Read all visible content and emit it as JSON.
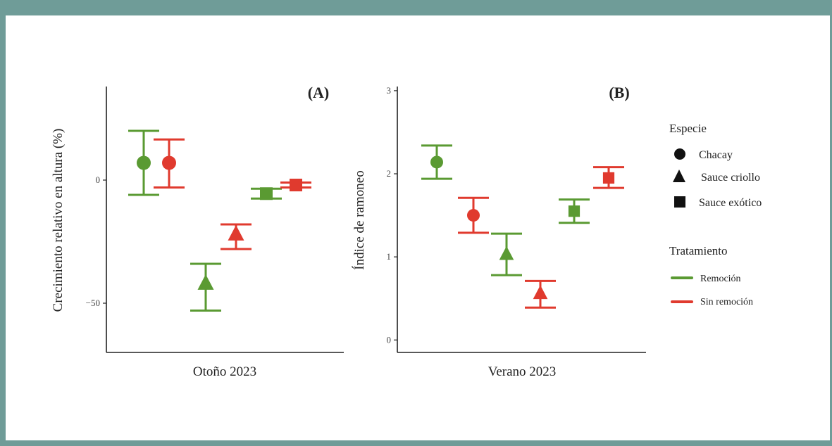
{
  "colors": {
    "remocion": "#5a9a32",
    "sin_remocion": "#e03a2e",
    "frame": "#6f9c98",
    "axis": "#222222"
  },
  "chart_data": [
    {
      "type": "scatter",
      "panel_label": "(A)",
      "xlabel": "Otoño 2023",
      "ylabel": "Crecimiento relativo en altura (%)",
      "ylim": [
        -70,
        38
      ],
      "yticks": [
        0,
        -50
      ],
      "grid": false,
      "points": [
        {
          "especie": "Chacay",
          "tratamiento": "Remoción",
          "mean": 7,
          "lower": -6,
          "upper": 20
        },
        {
          "especie": "Chacay",
          "tratamiento": "Sin remoción",
          "mean": 7,
          "lower": -3,
          "upper": 16.5
        },
        {
          "especie": "Sauce criollo",
          "tratamiento": "Remoción",
          "mean": -42,
          "lower": -53,
          "upper": -34
        },
        {
          "especie": "Sauce criollo",
          "tratamiento": "Sin remoción",
          "mean": -22,
          "lower": -28,
          "upper": -18
        },
        {
          "especie": "Sauce exótico",
          "tratamiento": "Remoción",
          "mean": -5.5,
          "lower": -7.5,
          "upper": -3.5
        },
        {
          "especie": "Sauce exótico",
          "tratamiento": "Sin remoción",
          "mean": -2,
          "lower": -3,
          "upper": -1
        }
      ]
    },
    {
      "type": "scatter",
      "panel_label": "(B)",
      "xlabel": "Verano 2023",
      "ylabel": "Índice de ramoneo",
      "ylim": [
        -0.15,
        3.05
      ],
      "yticks": [
        0,
        1,
        2,
        3
      ],
      "grid": false,
      "points": [
        {
          "especie": "Chacay",
          "tratamiento": "Remoción",
          "mean": 2.14,
          "lower": 1.94,
          "upper": 2.34
        },
        {
          "especie": "Chacay",
          "tratamiento": "Sin remoción",
          "mean": 1.5,
          "lower": 1.29,
          "upper": 1.71
        },
        {
          "especie": "Sauce criollo",
          "tratamiento": "Remoción",
          "mean": 1.03,
          "lower": 0.78,
          "upper": 1.28
        },
        {
          "especie": "Sauce criollo",
          "tratamiento": "Sin remoción",
          "mean": 0.56,
          "lower": 0.39,
          "upper": 0.71
        },
        {
          "especie": "Sauce exótico",
          "tratamiento": "Remoción",
          "mean": 1.55,
          "lower": 1.41,
          "upper": 1.69
        },
        {
          "especie": "Sauce exótico",
          "tratamiento": "Sin remoción",
          "mean": 1.95,
          "lower": 1.83,
          "upper": 2.08
        }
      ]
    }
  ],
  "legend": {
    "especie_title": "Especie",
    "especie": [
      {
        "label": "Chacay",
        "shape": "circle"
      },
      {
        "label": "Sauce criollo",
        "shape": "triangle"
      },
      {
        "label": "Sauce exótico",
        "shape": "square"
      }
    ],
    "tratamiento_title": "Tratamiento",
    "tratamiento": [
      {
        "label": "Remoción",
        "color": "#5a9a32"
      },
      {
        "label": "Sin remoción",
        "color": "#e03a2e"
      }
    ]
  }
}
